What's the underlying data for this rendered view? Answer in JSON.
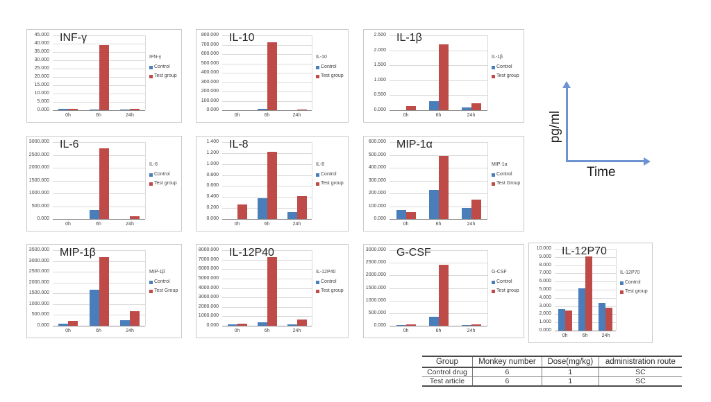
{
  "colors": {
    "control": "#4A7EBB",
    "test": "#BE4B48",
    "gridline": "#d9d9d9",
    "axis": "#8c8c8c",
    "arrow": "#6d94d1"
  },
  "annotation": {
    "ylabel": "pg/ml",
    "xlabel": "Time"
  },
  "table": {
    "headers": [
      "Group",
      "Monkey number",
      "Dose(mg/kg)",
      "administration route"
    ],
    "rows": [
      [
        "Control drug",
        "6",
        "1",
        "SC"
      ],
      [
        "Test article",
        "6",
        "1",
        "SC"
      ]
    ]
  },
  "chart_data": [
    {
      "type": "bar",
      "title": "INF-γ",
      "legend_title": "IFN-γ",
      "legend_position": "right",
      "grid": true,
      "categories": [
        "0h",
        "6h",
        "24h"
      ],
      "ylim": [
        0,
        45
      ],
      "ystep": 5,
      "series": [
        {
          "name": "Control",
          "key": "control",
          "values": [
            0.9,
            0.5,
            0.5
          ]
        },
        {
          "name": "Test group",
          "key": "test",
          "values": [
            0.8,
            39.2,
            1.0
          ]
        }
      ]
    },
    {
      "type": "bar",
      "title": "IL-10",
      "legend_title": "IL-10",
      "legend_position": "right",
      "grid": true,
      "categories": [
        "0h",
        "6h",
        "24h"
      ],
      "ylim": [
        0,
        800
      ],
      "ystep": 100,
      "series": [
        {
          "name": "Control",
          "key": "control",
          "values": [
            0,
            15,
            0
          ]
        },
        {
          "name": "Test group",
          "key": "test",
          "values": [
            0,
            728,
            6
          ]
        }
      ]
    },
    {
      "type": "bar",
      "title": "IL-1β",
      "legend_title": "IL-1β",
      "legend_position": "right",
      "grid": true,
      "categories": [
        "0h",
        "6h",
        "24h"
      ],
      "ylim": [
        0,
        2.5
      ],
      "ystep": 0.5,
      "series": [
        {
          "name": "Control",
          "key": "control",
          "values": [
            0,
            0.3,
            0.1
          ]
        },
        {
          "name": "Test group",
          "key": "test",
          "values": [
            0.13,
            2.2,
            0.23
          ]
        }
      ]
    },
    {
      "type": "bar",
      "title": "IL-6",
      "legend_title": "IL-6",
      "legend_position": "right",
      "grid": true,
      "categories": [
        "0h",
        "6h",
        "24h"
      ],
      "ylim": [
        0,
        3000
      ],
      "ystep": 500,
      "series": [
        {
          "name": "Control",
          "key": "control",
          "values": [
            0,
            340,
            0
          ]
        },
        {
          "name": "Test group",
          "key": "test",
          "values": [
            0,
            2750,
            120
          ]
        }
      ]
    },
    {
      "type": "bar",
      "title": "IL-8",
      "legend_title": "IL-8",
      "legend_position": "right",
      "grid": true,
      "categories": [
        "0h",
        "6h",
        "24h"
      ],
      "ylim": [
        0,
        1.4
      ],
      "ystep": 0.2,
      "series": [
        {
          "name": "Control",
          "key": "control",
          "values": [
            0,
            0.38,
            0.13
          ]
        },
        {
          "name": "Test group",
          "key": "test",
          "values": [
            0.26,
            1.22,
            0.41
          ]
        }
      ]
    },
    {
      "type": "bar",
      "title": "MIP-1α",
      "legend_title": "MIP-1α",
      "legend_position": "right",
      "grid": true,
      "categories": [
        "0h",
        "6h",
        "24h"
      ],
      "ylim": [
        0,
        600
      ],
      "ystep": 100,
      "series": [
        {
          "name": "Control",
          "key": "control",
          "values": [
            70,
            228,
            87
          ]
        },
        {
          "name": "Test Group",
          "key": "test",
          "values": [
            56,
            492,
            152
          ]
        }
      ]
    },
    {
      "type": "bar",
      "title": "MIP-1β",
      "legend_title": "MIP-1β",
      "legend_position": "right",
      "grid": true,
      "categories": [
        "0h",
        "6h",
        "24h"
      ],
      "ylim": [
        0,
        3500
      ],
      "ystep": 500,
      "series": [
        {
          "name": "Control",
          "key": "control",
          "values": [
            105,
            1660,
            245
          ]
        },
        {
          "name": "Test Group",
          "key": "test",
          "values": [
            225,
            3180,
            670
          ]
        }
      ]
    },
    {
      "type": "bar",
      "title": "IL-12P40",
      "legend_title": "IL-12P40",
      "legend_position": "right",
      "grid": true,
      "categories": [
        "0h",
        "6h",
        "24h"
      ],
      "ylim": [
        0,
        8000
      ],
      "ystep": 1000,
      "series": [
        {
          "name": "Control",
          "key": "control",
          "values": [
            130,
            340,
            120
          ]
        },
        {
          "name": "Test group",
          "key": "test",
          "values": [
            200,
            7300,
            650
          ]
        }
      ]
    },
    {
      "type": "bar",
      "title": "G-CSF",
      "legend_title": "G-CSF",
      "legend_position": "right",
      "grid": true,
      "categories": [
        "0h",
        "6h",
        "24h"
      ],
      "ylim": [
        0,
        3000
      ],
      "ystep": 500,
      "series": [
        {
          "name": "Control",
          "key": "control",
          "values": [
            10,
            345,
            35
          ]
        },
        {
          "name": "Test group",
          "key": "test",
          "values": [
            45,
            2410,
            65
          ]
        }
      ]
    },
    {
      "type": "bar",
      "title": "IL-12P70",
      "legend_title": "IL-12P70",
      "legend_position": "right",
      "grid": true,
      "categories": [
        "0h",
        "6h",
        "24h"
      ],
      "ylim": [
        0,
        10
      ],
      "ystep": 1,
      "series": [
        {
          "name": "Control",
          "key": "control",
          "values": [
            2.6,
            5.2,
            3.35
          ]
        },
        {
          "name": "Test group",
          "key": "test",
          "values": [
            2.45,
            9.1,
            2.8
          ]
        }
      ]
    }
  ]
}
